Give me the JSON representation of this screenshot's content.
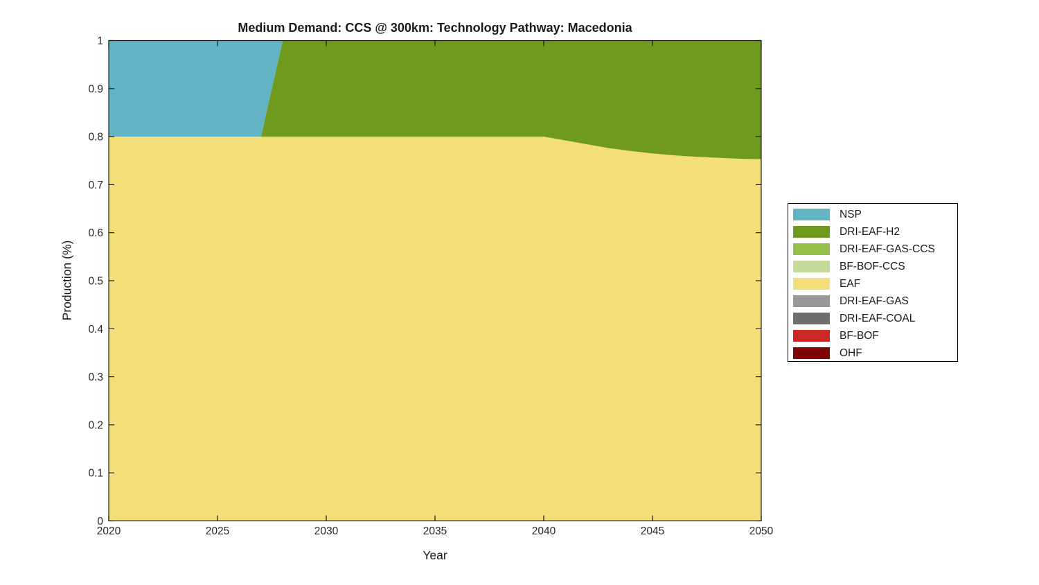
{
  "chart_data": {
    "type": "area",
    "stacked": true,
    "title": "Medium Demand: CCS @ 300km: Technology Pathway: Macedonia",
    "xlabel": "Year",
    "ylabel": "Production (%)",
    "xlim": [
      2020,
      2050
    ],
    "ylim": [
      0,
      1
    ],
    "xticks": [
      2020,
      2025,
      2030,
      2035,
      2040,
      2045,
      2050
    ],
    "yticks": [
      0,
      0.1,
      0.2,
      0.3,
      0.4,
      0.5,
      0.6,
      0.7,
      0.8,
      0.9,
      1
    ],
    "grid": false,
    "legend_position": "right-outside",
    "legend_order": [
      "NSP",
      "DRI-EAF-H2",
      "DRI-EAF-GAS-CCS",
      "BF-BOF-CCS",
      "EAF",
      "DRI-EAF-GAS",
      "DRI-EAF-COAL",
      "BF-BOF",
      "OHF"
    ],
    "colors": {
      "NSP": "#62B4C4",
      "DRI-EAF-H2": "#6F9A1E",
      "DRI-EAF-GAS-CCS": "#95BF48",
      "BF-BOF-CCS": "#C5DB9D",
      "EAF": "#F3DE77",
      "DRI-EAF-GAS": "#989898",
      "DRI-EAF-COAL": "#6E6E6E",
      "BF-BOF": "#CD2826",
      "OHF": "#7E0405"
    },
    "axis_color": "#1a1a1a",
    "tick_label_color": "#262626",
    "x": [
      2020,
      2021,
      2022,
      2023,
      2024,
      2025,
      2026,
      2027,
      2028,
      2029,
      2030,
      2031,
      2032,
      2033,
      2034,
      2035,
      2036,
      2037,
      2038,
      2039,
      2040,
      2041,
      2042,
      2043,
      2044,
      2045,
      2046,
      2047,
      2048,
      2049,
      2050
    ],
    "series": [
      {
        "name": "OHF",
        "values": [
          0,
          0,
          0,
          0,
          0,
          0,
          0,
          0,
          0,
          0,
          0,
          0,
          0,
          0,
          0,
          0,
          0,
          0,
          0,
          0,
          0,
          0,
          0,
          0,
          0,
          0,
          0,
          0,
          0,
          0,
          0
        ]
      },
      {
        "name": "BF-BOF",
        "values": [
          0,
          0,
          0,
          0,
          0,
          0,
          0,
          0,
          0,
          0,
          0,
          0,
          0,
          0,
          0,
          0,
          0,
          0,
          0,
          0,
          0,
          0,
          0,
          0,
          0,
          0,
          0,
          0,
          0,
          0,
          0
        ]
      },
      {
        "name": "DRI-EAF-COAL",
        "values": [
          0,
          0,
          0,
          0,
          0,
          0,
          0,
          0,
          0,
          0,
          0,
          0,
          0,
          0,
          0,
          0,
          0,
          0,
          0,
          0,
          0,
          0,
          0,
          0,
          0,
          0,
          0,
          0,
          0,
          0,
          0
        ]
      },
      {
        "name": "DRI-EAF-GAS",
        "values": [
          0,
          0,
          0,
          0,
          0,
          0,
          0,
          0,
          0,
          0,
          0,
          0,
          0,
          0,
          0,
          0,
          0,
          0,
          0,
          0,
          0,
          0,
          0,
          0,
          0,
          0,
          0,
          0,
          0,
          0,
          0
        ]
      },
      {
        "name": "EAF",
        "values": [
          0.8,
          0.8,
          0.8,
          0.8,
          0.8,
          0.8,
          0.8,
          0.8,
          0.8,
          0.8,
          0.8,
          0.8,
          0.8,
          0.8,
          0.8,
          0.8,
          0.8,
          0.8,
          0.8,
          0.8,
          0.8,
          0.792,
          0.784,
          0.776,
          0.77,
          0.765,
          0.761,
          0.758,
          0.756,
          0.754,
          0.753
        ]
      },
      {
        "name": "BF-BOF-CCS",
        "values": [
          0,
          0,
          0,
          0,
          0,
          0,
          0,
          0,
          0,
          0,
          0,
          0,
          0,
          0,
          0,
          0,
          0,
          0,
          0,
          0,
          0,
          0,
          0,
          0,
          0,
          0,
          0,
          0,
          0,
          0,
          0
        ]
      },
      {
        "name": "DRI-EAF-GAS-CCS",
        "values": [
          0,
          0,
          0,
          0,
          0,
          0,
          0,
          0,
          0,
          0,
          0,
          0,
          0,
          0,
          0,
          0,
          0,
          0,
          0,
          0,
          0,
          0,
          0,
          0,
          0,
          0,
          0,
          0,
          0,
          0,
          0
        ]
      },
      {
        "name": "DRI-EAF-H2",
        "values": [
          0,
          0,
          0,
          0,
          0,
          0,
          0,
          0,
          0.2,
          0.2,
          0.2,
          0.2,
          0.2,
          0.2,
          0.2,
          0.2,
          0.2,
          0.2,
          0.2,
          0.2,
          0.2,
          0.208,
          0.216,
          0.224,
          0.23,
          0.235,
          0.239,
          0.242,
          0.244,
          0.246,
          0.247
        ]
      },
      {
        "name": "NSP",
        "values": [
          0.2,
          0.2,
          0.2,
          0.2,
          0.2,
          0.2,
          0.2,
          0.2,
          0,
          0,
          0,
          0,
          0,
          0,
          0,
          0,
          0,
          0,
          0,
          0,
          0,
          0,
          0,
          0,
          0,
          0,
          0,
          0,
          0,
          0,
          0
        ]
      }
    ]
  }
}
